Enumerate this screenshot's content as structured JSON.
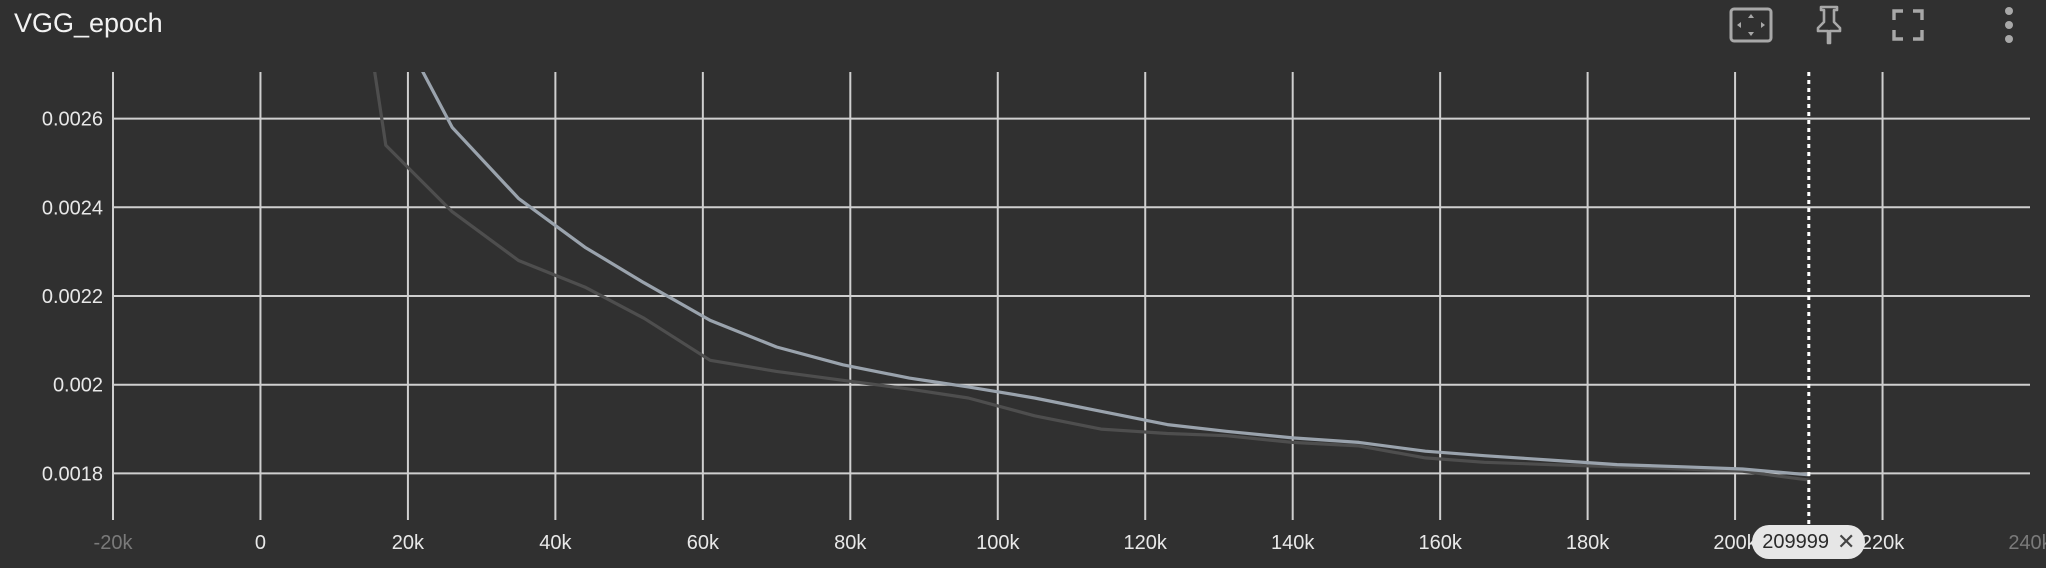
{
  "header": {
    "title": "VGG_epoch",
    "toolbar": [
      {
        "name": "fit-domain-icon",
        "label": ""
      },
      {
        "name": "pin-icon",
        "label": ""
      },
      {
        "name": "fullscreen-icon",
        "label": ""
      },
      {
        "name": "more-vert-icon",
        "label": ""
      }
    ]
  },
  "colors": {
    "background": "#303030",
    "grid": "#cfcfcf",
    "main_line": "#9aa3ad",
    "smoothed_line": "#4e4e4e",
    "cursor": "#ffffff"
  },
  "chart_data": {
    "type": "line",
    "title": "VGG_epoch",
    "xlabel": "",
    "ylabel": "",
    "xlim": [
      -20000,
      240000
    ],
    "ylim": [
      0.001695,
      0.002705
    ],
    "grid": true,
    "x_ticks": [
      "-20k",
      "0",
      "20k",
      "40k",
      "60k",
      "80k",
      "100k",
      "120k",
      "140k",
      "160k",
      "180k",
      "200k",
      "220k",
      "240k"
    ],
    "x_tick_values": [
      -20000,
      0,
      20000,
      40000,
      60000,
      80000,
      100000,
      120000,
      140000,
      160000,
      180000,
      200000,
      220000,
      240000
    ],
    "y_ticks": [
      "0.0018",
      "0.002",
      "0.0022",
      "0.0024",
      "0.0026"
    ],
    "y_tick_values": [
      0.0018,
      0.002,
      0.0022,
      0.0024,
      0.0026
    ],
    "series": [
      {
        "role": "raw",
        "color": "#9aa3ad",
        "x": [
          22000,
          26000,
          35000,
          44000,
          52000,
          61000,
          70000,
          79000,
          88000,
          96000,
          105000,
          114000,
          123000,
          131000,
          140000,
          149000,
          158000,
          166000,
          175000,
          184000,
          193000,
          201000,
          209999
        ],
        "y": [
          0.002706,
          0.00258,
          0.00242,
          0.00231,
          0.00223,
          0.002145,
          0.002085,
          0.002045,
          0.002015,
          0.001995,
          0.00197,
          0.00194,
          0.00191,
          0.001895,
          0.00188,
          0.00187,
          0.00185,
          0.00184,
          0.00183,
          0.00182,
          0.001815,
          0.00181,
          0.001797
        ]
      },
      {
        "role": "smoothed",
        "color": "#4e4e4e",
        "x": [
          15500,
          17000,
          26000,
          35000,
          44000,
          52000,
          61000,
          70000,
          79000,
          88000,
          96000,
          105000,
          114000,
          123000,
          131000,
          140000,
          149000,
          158000,
          166000,
          175000,
          184000,
          193000,
          201000,
          209999
        ],
        "y": [
          0.002705,
          0.00254,
          0.00239,
          0.00228,
          0.00222,
          0.00215,
          0.002055,
          0.00203,
          0.00201,
          0.00199,
          0.00197,
          0.00193,
          0.0019,
          0.00189,
          0.001885,
          0.00187,
          0.001862,
          0.001835,
          0.001825,
          0.00182,
          0.001815,
          0.00181,
          0.001805,
          0.001785
        ]
      }
    ],
    "cursor_x": 209999,
    "cursor_label": "209999"
  }
}
